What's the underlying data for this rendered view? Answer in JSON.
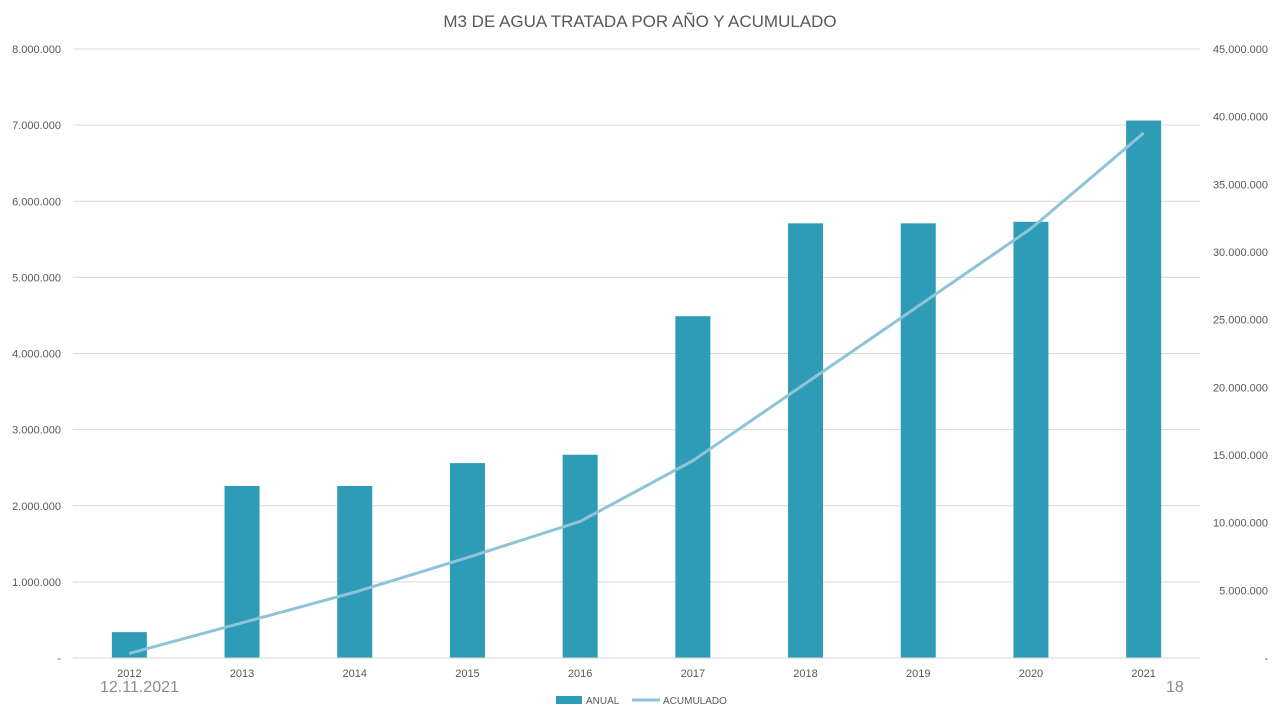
{
  "footer": {
    "date": "12.11.2021",
    "page": "18"
  },
  "colors": {
    "bar": "#2e9bb7",
    "line": "#8fc4d6",
    "grid": "#d9d9d9",
    "text": "#595959"
  },
  "chart_data": {
    "type": "bar",
    "title": "M3 DE AGUA TRATADA POR AÑO Y ACUMULADO",
    "categories": [
      "2012",
      "2013",
      "2014",
      "2015",
      "2016",
      "2017",
      "2018",
      "2019",
      "2020",
      "2021"
    ],
    "series": [
      {
        "name": "ANUAL",
        "type": "bar",
        "axis": "left",
        "values": [
          340000,
          2260000,
          2260000,
          2560000,
          2670000,
          4490000,
          5710000,
          5710000,
          5730000,
          7060000
        ]
      },
      {
        "name": "ACUMULADO",
        "type": "line",
        "axis": "right",
        "values": [
          340000,
          2600000,
          4860000,
          7420000,
          10090000,
          14580000,
          20290000,
          26000000,
          31730000,
          38790000
        ]
      }
    ],
    "y_left": {
      "lim": [
        0,
        8000000
      ],
      "ticks": [
        "-",
        "1.000.000",
        "2.000.000",
        "3.000.000",
        "4.000.000",
        "5.000.000",
        "6.000.000",
        "7.000.000",
        "8.000.000"
      ]
    },
    "y_right": {
      "lim": [
        0,
        45000000
      ],
      "ticks": [
        "-",
        "5.000.000",
        "10.000.000",
        "15.000.000",
        "20.000.000",
        "25.000.000",
        "30.000.000",
        "35.000.000",
        "40.000.000",
        "45.000.000"
      ]
    },
    "grid": true,
    "legend": "bottom-center"
  }
}
